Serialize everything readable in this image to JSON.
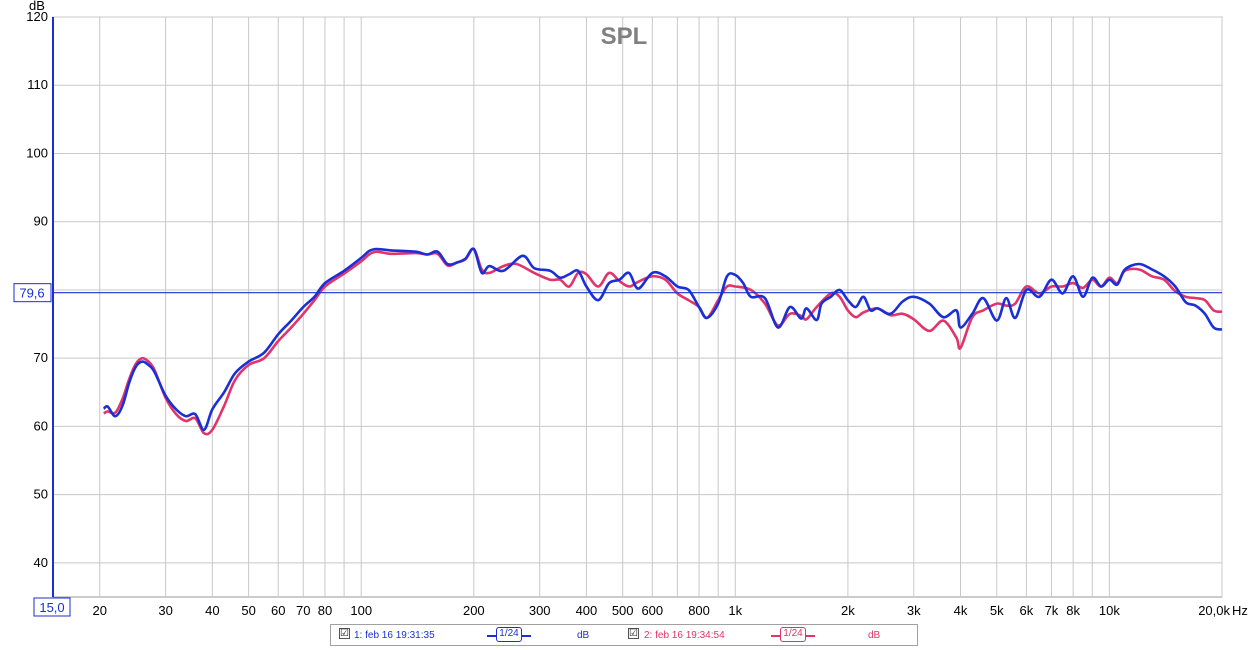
{
  "chart_data": {
    "type": "line",
    "title": "SPL",
    "ylabel": "dB",
    "xunit": "Hz",
    "xscale": "log",
    "xlim": [
      15,
      20000
    ],
    "ylim": [
      35,
      120
    ],
    "grid": true,
    "xticks": [
      {
        "v": 20,
        "label": "20"
      },
      {
        "v": 30,
        "label": "30"
      },
      {
        "v": 40,
        "label": "40"
      },
      {
        "v": 50,
        "label": "50"
      },
      {
        "v": 60,
        "label": "60"
      },
      {
        "v": 70,
        "label": "70"
      },
      {
        "v": 80,
        "label": "80"
      },
      {
        "v": 100,
        "label": "100"
      },
      {
        "v": 200,
        "label": "200"
      },
      {
        "v": 300,
        "label": "300"
      },
      {
        "v": 400,
        "label": "400"
      },
      {
        "v": 500,
        "label": "500"
      },
      {
        "v": 600,
        "label": "600"
      },
      {
        "v": 800,
        "label": "800"
      },
      {
        "v": 1000,
        "label": "1k"
      },
      {
        "v": 2000,
        "label": "2k"
      },
      {
        "v": 3000,
        "label": "3k"
      },
      {
        "v": 4000,
        "label": "4k"
      },
      {
        "v": 5000,
        "label": "5k"
      },
      {
        "v": 6000,
        "label": "6k"
      },
      {
        "v": 7000,
        "label": "7k"
      },
      {
        "v": 8000,
        "label": "8k"
      },
      {
        "v": 10000,
        "label": "10k"
      },
      {
        "v": 20000,
        "label": "20,0k"
      }
    ],
    "xgrid": [
      20,
      30,
      40,
      50,
      60,
      70,
      80,
      90,
      100,
      200,
      300,
      400,
      500,
      600,
      700,
      800,
      900,
      1000,
      2000,
      3000,
      4000,
      5000,
      6000,
      7000,
      8000,
      9000,
      10000,
      20000
    ],
    "yticks": [
      40,
      50,
      60,
      70,
      80,
      90,
      100,
      110,
      120
    ],
    "ymin_label": "15,0",
    "cursor": {
      "value": 79.6,
      "label": "79,6"
    },
    "series": [
      {
        "name": "1: feb 16 19:31:35",
        "color": "#1a2fd6",
        "points": [
          [
            20.5,
            62.6
          ],
          [
            21,
            62.9
          ],
          [
            22,
            61.5
          ],
          [
            23,
            63
          ],
          [
            24,
            66.5
          ],
          [
            25,
            68.8
          ],
          [
            26,
            69.5
          ],
          [
            27,
            69
          ],
          [
            28,
            68
          ],
          [
            30,
            64.5
          ],
          [
            32,
            62.5
          ],
          [
            34,
            61.5
          ],
          [
            36,
            61.8
          ],
          [
            38,
            59.5
          ],
          [
            40,
            62.5
          ],
          [
            43,
            65
          ],
          [
            46,
            67.8
          ],
          [
            50,
            69.5
          ],
          [
            55,
            70.8
          ],
          [
            60,
            73.5
          ],
          [
            65,
            75.5
          ],
          [
            70,
            77.5
          ],
          [
            75,
            79
          ],
          [
            80,
            81
          ],
          [
            90,
            82.8
          ],
          [
            100,
            84.7
          ],
          [
            105,
            85.7
          ],
          [
            110,
            86
          ],
          [
            120,
            85.8
          ],
          [
            140,
            85.6
          ],
          [
            150,
            85.2
          ],
          [
            160,
            85.6
          ],
          [
            170,
            83.8
          ],
          [
            180,
            84
          ],
          [
            190,
            84.6
          ],
          [
            200,
            86
          ],
          [
            210,
            82.5
          ],
          [
            220,
            83.5
          ],
          [
            240,
            82.8
          ],
          [
            270,
            85
          ],
          [
            290,
            83.2
          ],
          [
            320,
            82.8
          ],
          [
            340,
            81.8
          ],
          [
            360,
            82.3
          ],
          [
            380,
            82.8
          ],
          [
            400,
            80.5
          ],
          [
            430,
            78.5
          ],
          [
            460,
            81
          ],
          [
            490,
            81.5
          ],
          [
            520,
            82.5
          ],
          [
            550,
            80.2
          ],
          [
            600,
            82.5
          ],
          [
            650,
            82
          ],
          [
            700,
            80.5
          ],
          [
            750,
            80
          ],
          [
            800,
            77.5
          ],
          [
            840,
            75.9
          ],
          [
            900,
            78
          ],
          [
            950,
            82
          ],
          [
            1000,
            82.2
          ],
          [
            1050,
            81
          ],
          [
            1100,
            79
          ],
          [
            1200,
            78.8
          ],
          [
            1300,
            74.5
          ],
          [
            1400,
            77.5
          ],
          [
            1500,
            75.8
          ],
          [
            1550,
            77.3
          ],
          [
            1650,
            75.6
          ],
          [
            1700,
            78
          ],
          [
            1800,
            79
          ],
          [
            1900,
            80
          ],
          [
            2000,
            78.5
          ],
          [
            2100,
            77.5
          ],
          [
            2200,
            79
          ],
          [
            2300,
            77
          ],
          [
            2400,
            77.3
          ],
          [
            2600,
            76.5
          ],
          [
            2800,
            78.3
          ],
          [
            3000,
            79
          ],
          [
            3300,
            78
          ],
          [
            3600,
            76
          ],
          [
            3900,
            77
          ],
          [
            4000,
            74.5
          ],
          [
            4300,
            76.5
          ],
          [
            4600,
            78.8
          ],
          [
            5000,
            75.5
          ],
          [
            5300,
            78.8
          ],
          [
            5600,
            75.9
          ],
          [
            6000,
            80
          ],
          [
            6500,
            79
          ],
          [
            7000,
            81.5
          ],
          [
            7500,
            79.5
          ],
          [
            8000,
            82
          ],
          [
            8500,
            79
          ],
          [
            9000,
            81.8
          ],
          [
            9500,
            80.5
          ],
          [
            10000,
            81.5
          ],
          [
            10500,
            80.8
          ],
          [
            11000,
            83
          ],
          [
            12000,
            83.8
          ],
          [
            13000,
            83
          ],
          [
            14000,
            82
          ],
          [
            15000,
            80.5
          ],
          [
            16000,
            78.2
          ],
          [
            17000,
            77.7
          ],
          [
            18000,
            76.5
          ],
          [
            19000,
            74.5
          ],
          [
            20000,
            74.2
          ]
        ]
      },
      {
        "name": "2: feb 16 19:34:54",
        "color": "#e0346a",
        "points": [
          [
            20.5,
            61.9
          ],
          [
            21,
            62.2
          ],
          [
            22,
            62
          ],
          [
            23,
            64
          ],
          [
            24,
            67
          ],
          [
            25,
            69.2
          ],
          [
            26,
            70
          ],
          [
            27,
            69.5
          ],
          [
            28,
            68.3
          ],
          [
            30,
            64.2
          ],
          [
            32,
            61.8
          ],
          [
            34,
            60.8
          ],
          [
            36,
            61.2
          ],
          [
            38,
            59
          ],
          [
            40,
            59.5
          ],
          [
            43,
            63
          ],
          [
            46,
            66.8
          ],
          [
            50,
            69
          ],
          [
            55,
            70
          ],
          [
            60,
            72.5
          ],
          [
            65,
            74.5
          ],
          [
            70,
            76.5
          ],
          [
            75,
            78.5
          ],
          [
            80,
            80.5
          ],
          [
            90,
            82.4
          ],
          [
            100,
            84.2
          ],
          [
            105,
            85.2
          ],
          [
            110,
            85.6
          ],
          [
            120,
            85.3
          ],
          [
            140,
            85.4
          ],
          [
            150,
            85.2
          ],
          [
            160,
            85.3
          ],
          [
            170,
            83.6
          ],
          [
            180,
            84
          ],
          [
            190,
            84.5
          ],
          [
            200,
            86
          ],
          [
            210,
            83
          ],
          [
            220,
            82.5
          ],
          [
            240,
            83.5
          ],
          [
            260,
            83.8
          ],
          [
            290,
            82.5
          ],
          [
            320,
            81.5
          ],
          [
            340,
            81.5
          ],
          [
            360,
            80.5
          ],
          [
            380,
            82.5
          ],
          [
            400,
            82.3
          ],
          [
            430,
            80.5
          ],
          [
            460,
            82.5
          ],
          [
            490,
            81.3
          ],
          [
            520,
            80.5
          ],
          [
            550,
            81.2
          ],
          [
            600,
            82
          ],
          [
            650,
            81.5
          ],
          [
            700,
            79.5
          ],
          [
            750,
            78.5
          ],
          [
            800,
            77.5
          ],
          [
            840,
            75.9
          ],
          [
            900,
            78.5
          ],
          [
            950,
            80.5
          ],
          [
            1000,
            80.5
          ],
          [
            1100,
            80
          ],
          [
            1200,
            78
          ],
          [
            1300,
            74.8
          ],
          [
            1400,
            76.5
          ],
          [
            1500,
            76.2
          ],
          [
            1550,
            75.7
          ],
          [
            1650,
            77.5
          ],
          [
            1800,
            79.5
          ],
          [
            1900,
            79
          ],
          [
            2000,
            77
          ],
          [
            2100,
            76
          ],
          [
            2200,
            76.7
          ],
          [
            2400,
            77.3
          ],
          [
            2600,
            76.3
          ],
          [
            2800,
            76.5
          ],
          [
            3000,
            75.7
          ],
          [
            3300,
            74
          ],
          [
            3600,
            75.5
          ],
          [
            3900,
            73
          ],
          [
            4000,
            71.5
          ],
          [
            4300,
            76
          ],
          [
            4600,
            77
          ],
          [
            5000,
            78
          ],
          [
            5300,
            77.7
          ],
          [
            5600,
            78
          ],
          [
            6000,
            80.5
          ],
          [
            6500,
            79.5
          ],
          [
            7000,
            80.5
          ],
          [
            7500,
            80.5
          ],
          [
            8000,
            81
          ],
          [
            8500,
            80.3
          ],
          [
            9000,
            81.5
          ],
          [
            9500,
            80.5
          ],
          [
            10000,
            81.8
          ],
          [
            10500,
            81
          ],
          [
            11000,
            82.8
          ],
          [
            12000,
            83
          ],
          [
            13000,
            82
          ],
          [
            14000,
            81.5
          ],
          [
            15000,
            79.8
          ],
          [
            16000,
            79
          ],
          [
            17000,
            78.8
          ],
          [
            18000,
            78.5
          ],
          [
            19000,
            77
          ],
          [
            20000,
            76.8
          ]
        ]
      }
    ]
  },
  "legend": {
    "items": [
      {
        "check": "☑",
        "label": "1: feb 16 19:31:35",
        "smoothing": "1/24",
        "unit": "dB",
        "color": "#1a2fd6"
      },
      {
        "check": "☑",
        "label": "2: feb 16 19:34:54",
        "smoothing": "1/24",
        "unit": "dB",
        "color": "#e0346a"
      }
    ]
  }
}
